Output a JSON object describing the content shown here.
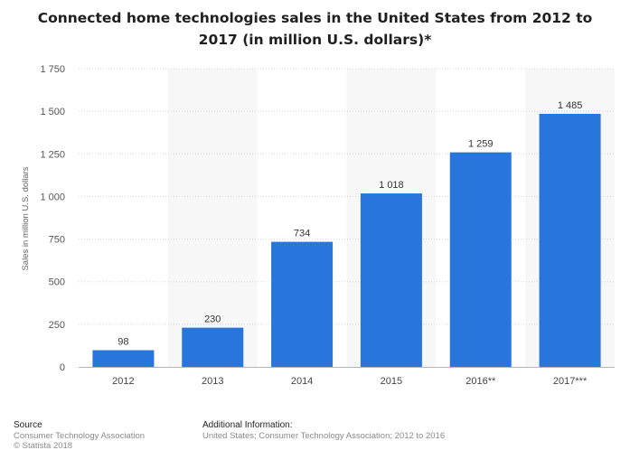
{
  "title_line1": "Connected home technologies sales in the United States from 2012 to",
  "title_line2": "2017 (in million U.S. dollars)*",
  "chart_data": {
    "type": "bar",
    "categories": [
      "2012",
      "2013",
      "2014",
      "2015",
      "2016**",
      "2017***"
    ],
    "values": [
      98,
      230,
      734,
      1018,
      1259,
      1485
    ],
    "value_labels": [
      "98",
      "230",
      "734",
      "1 018",
      "1 259",
      "1 485"
    ],
    "ylabel": "Sales in million U.S. dollars",
    "ylim": [
      0,
      1750
    ],
    "yticks": [
      0,
      250,
      500,
      750,
      1000,
      1250,
      1500,
      1750
    ],
    "ytick_labels": [
      "0",
      "250",
      "500",
      "750",
      "1 000",
      "1 250",
      "1 500",
      "1 750"
    ],
    "grid": true,
    "bar_color": "#2875dc"
  },
  "footer": {
    "source_label": "Source",
    "source_line1": "Consumer Technology Association",
    "source_line2": "© Statista 2018",
    "info_label": "Additional Information:",
    "info_text": "United States; Consumer Technology Association; 2012 to 2016"
  }
}
